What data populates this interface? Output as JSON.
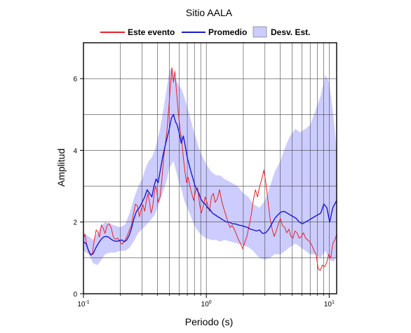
{
  "chart_data": {
    "type": "line",
    "title": "Sitio AALA",
    "xlabel": "Periodo (s)",
    "ylabel": "Amplitud",
    "xscale": "log",
    "xlim": [
      0.1,
      11.5
    ],
    "ylim": [
      0,
      7
    ],
    "grid": true,
    "legend_position": "top",
    "yticks": [
      0,
      2,
      4,
      6
    ],
    "xticks": [
      {
        "value": 0.1,
        "base": "10",
        "exp": "-1"
      },
      {
        "value": 1,
        "base": "10",
        "exp": "0"
      },
      {
        "value": 10,
        "base": "10",
        "exp": "1"
      }
    ],
    "legend": {
      "evento": "Este evento",
      "promedio": "Promedio",
      "desv": "Desv. Est."
    },
    "colors": {
      "evento": "#e8202a",
      "promedio": "#1a1acc",
      "band": "#ccccff"
    },
    "series": [
      {
        "name": "Este evento",
        "points": [
          [
            0.1,
            1.55
          ],
          [
            0.103,
            1.66
          ],
          [
            0.106,
            1.4
          ],
          [
            0.11,
            1.18
          ],
          [
            0.114,
            1.08
          ],
          [
            0.118,
            1.12
          ],
          [
            0.122,
            1.45
          ],
          [
            0.127,
            1.78
          ],
          [
            0.131,
            1.72
          ],
          [
            0.135,
            1.58
          ],
          [
            0.14,
            1.92
          ],
          [
            0.145,
            1.82
          ],
          [
            0.15,
            1.68
          ],
          [
            0.156,
            1.9
          ],
          [
            0.162,
            1.96
          ],
          [
            0.168,
            1.84
          ],
          [
            0.175,
            1.58
          ],
          [
            0.182,
            1.52
          ],
          [
            0.19,
            1.55
          ],
          [
            0.198,
            1.45
          ],
          [
            0.206,
            1.38
          ],
          [
            0.215,
            1.46
          ],
          [
            0.225,
            1.58
          ],
          [
            0.235,
            1.75
          ],
          [
            0.245,
            1.9
          ],
          [
            0.255,
            2.22
          ],
          [
            0.265,
            2.5
          ],
          [
            0.275,
            2.45
          ],
          [
            0.285,
            2.15
          ],
          [
            0.295,
            2.35
          ],
          [
            0.305,
            2.48
          ],
          [
            0.315,
            2.3
          ],
          [
            0.325,
            2.6
          ],
          [
            0.335,
            2.8
          ],
          [
            0.345,
            2.55
          ],
          [
            0.355,
            2.25
          ],
          [
            0.365,
            2.4
          ],
          [
            0.375,
            2.75
          ],
          [
            0.385,
            3.0
          ],
          [
            0.395,
            2.9
          ],
          [
            0.405,
            2.55
          ],
          [
            0.42,
            2.7
          ],
          [
            0.435,
            3.2
          ],
          [
            0.45,
            3.8
          ],
          [
            0.465,
            4.2
          ],
          [
            0.48,
            4.6
          ],
          [
            0.495,
            5.2
          ],
          [
            0.51,
            5.8
          ],
          [
            0.525,
            6.3
          ],
          [
            0.54,
            5.9
          ],
          [
            0.555,
            6.2
          ],
          [
            0.57,
            5.7
          ],
          [
            0.59,
            5.1
          ],
          [
            0.61,
            4.6
          ],
          [
            0.63,
            4.3
          ],
          [
            0.65,
            3.8
          ],
          [
            0.67,
            3.4
          ],
          [
            0.69,
            3.1
          ],
          [
            0.71,
            3.25
          ],
          [
            0.735,
            3.0
          ],
          [
            0.76,
            2.8
          ],
          [
            0.79,
            2.6
          ],
          [
            0.82,
            2.9
          ],
          [
            0.85,
            2.95
          ],
          [
            0.88,
            2.5
          ],
          [
            0.91,
            2.25
          ],
          [
            0.945,
            2.45
          ],
          [
            0.98,
            2.7
          ],
          [
            1.02,
            2.5
          ],
          [
            1.06,
            2.3
          ],
          [
            1.1,
            2.7
          ],
          [
            1.14,
            2.8
          ],
          [
            1.18,
            2.55
          ],
          [
            1.23,
            2.65
          ],
          [
            1.28,
            2.9
          ],
          [
            1.33,
            2.6
          ],
          [
            1.38,
            2.4
          ],
          [
            1.44,
            2.2
          ],
          [
            1.5,
            2.0
          ],
          [
            1.56,
            1.85
          ],
          [
            1.62,
            1.9
          ],
          [
            1.69,
            1.8
          ],
          [
            1.76,
            1.65
          ],
          [
            1.83,
            1.5
          ],
          [
            1.9,
            1.4
          ],
          [
            1.98,
            1.25
          ],
          [
            2.06,
            1.45
          ],
          [
            2.14,
            1.6
          ],
          [
            2.23,
            1.9
          ],
          [
            2.32,
            2.2
          ],
          [
            2.41,
            2.6
          ],
          [
            2.51,
            2.9
          ],
          [
            2.61,
            2.7
          ],
          [
            2.72,
            3.0
          ],
          [
            2.83,
            3.2
          ],
          [
            2.94,
            3.45
          ],
          [
            3.05,
            3.1
          ],
          [
            3.17,
            2.6
          ],
          [
            3.3,
            2.1
          ],
          [
            3.43,
            1.8
          ],
          [
            3.57,
            1.6
          ],
          [
            3.71,
            1.75
          ],
          [
            3.86,
            1.95
          ],
          [
            4.01,
            2.1
          ],
          [
            4.17,
            1.9
          ],
          [
            4.34,
            1.85
          ],
          [
            4.51,
            1.7
          ],
          [
            4.69,
            1.8
          ],
          [
            4.88,
            1.6
          ],
          [
            5.07,
            1.55
          ],
          [
            5.27,
            1.75
          ],
          [
            5.48,
            1.7
          ],
          [
            5.7,
            1.55
          ],
          [
            5.93,
            1.6
          ],
          [
            6.17,
            1.7
          ],
          [
            6.42,
            1.55
          ],
          [
            6.68,
            1.5
          ],
          [
            6.95,
            1.45
          ],
          [
            7.23,
            1.35
          ],
          [
            7.52,
            1.2
          ],
          [
            7.82,
            1.1
          ],
          [
            8.13,
            0.7
          ],
          [
            8.46,
            0.65
          ],
          [
            8.8,
            0.8
          ],
          [
            9.15,
            0.75
          ],
          [
            9.52,
            0.85
          ],
          [
            9.9,
            1.1
          ],
          [
            10.3,
            1.0
          ],
          [
            10.7,
            1.4
          ],
          [
            11.1,
            1.5
          ],
          [
            11.5,
            1.65
          ]
        ]
      },
      {
        "name": "Promedio",
        "points": [
          [
            0.1,
            1.45
          ],
          [
            0.105,
            1.4
          ],
          [
            0.11,
            1.2
          ],
          [
            0.115,
            1.08
          ],
          [
            0.12,
            1.12
          ],
          [
            0.126,
            1.28
          ],
          [
            0.132,
            1.4
          ],
          [
            0.138,
            1.5
          ],
          [
            0.145,
            1.58
          ],
          [
            0.152,
            1.6
          ],
          [
            0.16,
            1.58
          ],
          [
            0.168,
            1.52
          ],
          [
            0.176,
            1.48
          ],
          [
            0.185,
            1.46
          ],
          [
            0.195,
            1.48
          ],
          [
            0.205,
            1.5
          ],
          [
            0.215,
            1.45
          ],
          [
            0.225,
            1.5
          ],
          [
            0.235,
            1.62
          ],
          [
            0.245,
            1.8
          ],
          [
            0.258,
            2.1
          ],
          [
            0.27,
            2.3
          ],
          [
            0.285,
            2.4
          ],
          [
            0.3,
            2.55
          ],
          [
            0.315,
            2.7
          ],
          [
            0.33,
            2.9
          ],
          [
            0.345,
            2.8
          ],
          [
            0.36,
            2.7
          ],
          [
            0.375,
            3.0
          ],
          [
            0.39,
            3.2
          ],
          [
            0.405,
            3.1
          ],
          [
            0.42,
            3.4
          ],
          [
            0.44,
            3.8
          ],
          [
            0.46,
            4.1
          ],
          [
            0.48,
            4.35
          ],
          [
            0.5,
            4.6
          ],
          [
            0.52,
            4.9
          ],
          [
            0.54,
            5.0
          ],
          [
            0.56,
            4.8
          ],
          [
            0.58,
            4.7
          ],
          [
            0.6,
            4.5
          ],
          [
            0.625,
            4.2
          ],
          [
            0.65,
            4.4
          ],
          [
            0.675,
            4.1
          ],
          [
            0.7,
            3.8
          ],
          [
            0.725,
            3.6
          ],
          [
            0.75,
            3.4
          ],
          [
            0.78,
            3.2
          ],
          [
            0.81,
            3.0
          ],
          [
            0.84,
            2.9
          ],
          [
            0.87,
            2.8
          ],
          [
            0.9,
            2.65
          ],
          [
            0.94,
            2.55
          ],
          [
            0.98,
            2.5
          ],
          [
            1.02,
            2.4
          ],
          [
            1.07,
            2.35
          ],
          [
            1.12,
            2.25
          ],
          [
            1.18,
            2.2
          ],
          [
            1.24,
            2.15
          ],
          [
            1.31,
            2.1
          ],
          [
            1.38,
            2.05
          ],
          [
            1.46,
            2.0
          ],
          [
            1.54,
            2.0
          ],
          [
            1.63,
            1.95
          ],
          [
            1.72,
            1.95
          ],
          [
            1.82,
            1.92
          ],
          [
            1.93,
            1.9
          ],
          [
            2.04,
            1.88
          ],
          [
            2.16,
            1.85
          ],
          [
            2.29,
            1.8
          ],
          [
            2.42,
            1.78
          ],
          [
            2.56,
            1.75
          ],
          [
            2.71,
            1.78
          ],
          [
            2.87,
            1.68
          ],
          [
            3.04,
            1.7
          ],
          [
            3.22,
            1.8
          ],
          [
            3.41,
            1.95
          ],
          [
            3.61,
            2.1
          ],
          [
            3.82,
            2.2
          ],
          [
            4.05,
            2.28
          ],
          [
            4.29,
            2.3
          ],
          [
            4.54,
            2.25
          ],
          [
            4.81,
            2.2
          ],
          [
            5.09,
            2.15
          ],
          [
            5.39,
            2.1
          ],
          [
            5.71,
            2.0
          ],
          [
            6.05,
            1.95
          ],
          [
            6.41,
            2.0
          ],
          [
            6.79,
            2.05
          ],
          [
            7.19,
            2.1
          ],
          [
            7.61,
            2.15
          ],
          [
            8.06,
            2.2
          ],
          [
            8.54,
            2.25
          ],
          [
            9.04,
            2.5
          ],
          [
            9.57,
            2.4
          ],
          [
            10.1,
            2.0
          ],
          [
            10.7,
            2.4
          ],
          [
            11.5,
            2.6
          ]
        ]
      }
    ],
    "band": {
      "name": "Desv. Est.",
      "x": [
        0.1,
        0.11,
        0.12,
        0.13,
        0.14,
        0.15,
        0.165,
        0.18,
        0.2,
        0.22,
        0.24,
        0.26,
        0.28,
        0.3,
        0.32,
        0.34,
        0.36,
        0.38,
        0.4,
        0.42,
        0.44,
        0.46,
        0.48,
        0.5,
        0.52,
        0.54,
        0.56,
        0.58,
        0.6,
        0.63,
        0.66,
        0.7,
        0.74,
        0.78,
        0.83,
        0.88,
        0.94,
        1.0,
        1.1,
        1.2,
        1.3,
        1.4,
        1.6,
        1.8,
        2.0,
        2.2,
        2.4,
        2.7,
        3.0,
        3.3,
        3.6,
        4.0,
        4.4,
        4.8,
        5.3,
        5.8,
        6.4,
        7.0,
        7.7,
        8.5,
        9.3,
        10.0,
        10.8,
        11.5
      ],
      "upper": [
        1.7,
        1.6,
        1.5,
        1.7,
        1.9,
        2.0,
        1.95,
        1.9,
        1.85,
        1.95,
        2.3,
        2.7,
        3.0,
        3.2,
        3.5,
        3.7,
        3.8,
        4.0,
        4.3,
        4.6,
        5.0,
        5.4,
        5.8,
        6.2,
        6.3,
        6.1,
        6.0,
        5.9,
        5.8,
        5.7,
        5.5,
        5.2,
        4.9,
        4.6,
        4.3,
        4.0,
        3.8,
        3.6,
        3.4,
        3.3,
        3.3,
        3.2,
        3.1,
        3.0,
        2.8,
        2.7,
        2.5,
        2.4,
        2.6,
        3.0,
        3.4,
        3.7,
        4.1,
        4.4,
        4.6,
        4.5,
        4.6,
        4.7,
        5.1,
        5.5,
        6.1,
        5.9,
        5.0,
        4.0
      ],
      "lower": [
        1.2,
        1.1,
        0.85,
        0.8,
        0.95,
        1.1,
        1.15,
        1.15,
        1.2,
        1.2,
        1.3,
        1.5,
        1.7,
        1.8,
        1.9,
        2.0,
        2.1,
        2.2,
        2.4,
        2.6,
        2.8,
        3.0,
        3.2,
        3.5,
        3.6,
        3.7,
        3.5,
        3.3,
        3.1,
        2.9,
        2.6,
        2.4,
        2.2,
        2.0,
        1.8,
        1.7,
        1.6,
        1.55,
        1.5,
        1.5,
        1.45,
        1.5,
        1.45,
        1.4,
        1.35,
        1.3,
        1.2,
        1.0,
        0.95,
        1.0,
        1.1,
        1.1,
        1.2,
        1.3,
        1.4,
        1.3,
        1.2,
        1.1,
        1.1,
        1.0,
        1.2,
        0.95,
        0.9,
        1.0
      ]
    }
  }
}
